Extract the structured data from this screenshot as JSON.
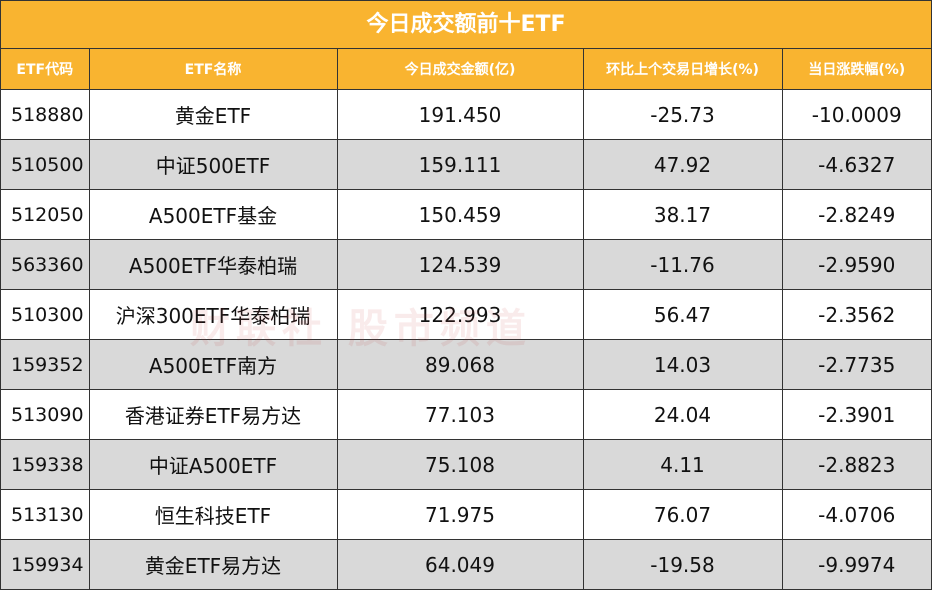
{
  "title": "今日成交额前十ETF",
  "columns": [
    "ETF代码",
    "ETF名称",
    "今日成交金额(亿)",
    "环比上个交易日增长(%)",
    "当日涨跌幅(%)"
  ],
  "rows": [
    {
      "code": "518880",
      "name": "黄金ETF",
      "amount": "191.450",
      "growth": "-25.73",
      "change": "-10.0009"
    },
    {
      "code": "510500",
      "name": "中证500ETF",
      "amount": "159.111",
      "growth": "47.92",
      "change": "-4.6327"
    },
    {
      "code": "512050",
      "name": "A500ETF基金",
      "amount": "150.459",
      "growth": "38.17",
      "change": "-2.8249"
    },
    {
      "code": "563360",
      "name": "A500ETF华泰柏瑞",
      "amount": "124.539",
      "growth": "-11.76",
      "change": "-2.9590"
    },
    {
      "code": "510300",
      "name": "沪深300ETF华泰柏瑞",
      "amount": "122.993",
      "growth": "56.47",
      "change": "-2.3562"
    },
    {
      "code": "159352",
      "name": "A500ETF南方",
      "amount": "89.068",
      "growth": "14.03",
      "change": "-2.7735"
    },
    {
      "code": "513090",
      "name": "香港证券ETF易方达",
      "amount": "77.103",
      "growth": "24.04",
      "change": "-2.3901"
    },
    {
      "code": "159338",
      "name": "中证A500ETF",
      "amount": "75.108",
      "growth": "4.11",
      "change": "-2.8823"
    },
    {
      "code": "513130",
      "name": "恒生科技ETF",
      "amount": "71.975",
      "growth": "76.07",
      "change": "-4.0706"
    },
    {
      "code": "159934",
      "name": "黄金ETF易方达",
      "amount": "64.049",
      "growth": "-19.58",
      "change": "-9.9974"
    }
  ],
  "watermark": "财联社 股市频道",
  "colors": {
    "header": "#F9B430",
    "stripe": "#D9D9D9"
  }
}
